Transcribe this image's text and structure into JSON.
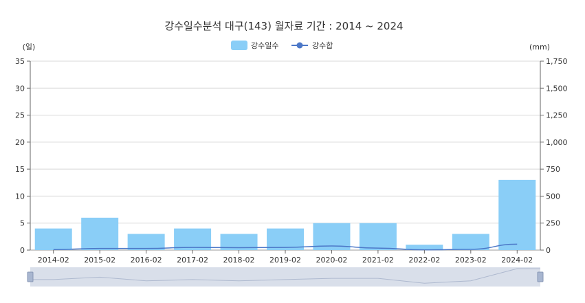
{
  "chart_data": {
    "type": "bar",
    "title": "강수일수분석 대구(143) 월자료 기간 : 2014 ~ 2024",
    "categories": [
      "2014-02",
      "2015-02",
      "2016-02",
      "2017-02",
      "2018-02",
      "2019-02",
      "2020-02",
      "2021-02",
      "2022-02",
      "2023-02",
      "2024-02"
    ],
    "series": [
      {
        "name": "강수일수",
        "type": "bar",
        "axis": "left",
        "color": "#8ACEF7",
        "values": [
          4,
          6,
          3,
          4,
          3,
          4,
          5,
          5,
          1,
          3,
          13
        ]
      },
      {
        "name": "강수합",
        "type": "line",
        "axis": "right",
        "color": "#4C78C8",
        "values": [
          5,
          15,
          15,
          25,
          22,
          25,
          38,
          18,
          2,
          8,
          55
        ]
      }
    ],
    "y_left": {
      "unit": "(일)",
      "min": 0,
      "max": 35,
      "ticks": [
        "0",
        "5",
        "10",
        "15",
        "20",
        "25",
        "30",
        "35"
      ]
    },
    "y_right": {
      "unit": "(mm)",
      "min": 0,
      "max": 1750,
      "ticks": [
        "0",
        "250",
        "500",
        "750",
        "1,000",
        "1,250",
        "1,500",
        "1,750"
      ]
    },
    "grid": true,
    "legend_position": "top-center",
    "navigator": true
  }
}
